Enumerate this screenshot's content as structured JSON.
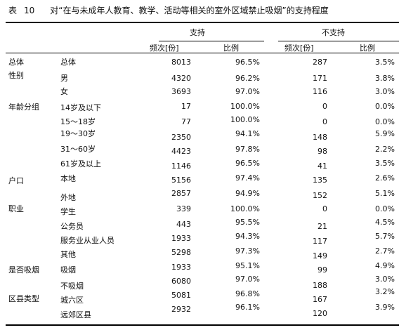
{
  "table": {
    "label": "表",
    "number": "10",
    "caption": "对“在与未成年人教育、教学、活动等相关的室外区域禁止吸烟”的支持程度",
    "groups": {
      "support": "支持",
      "nonsupport": "不支持"
    },
    "subheaders": {
      "freq": "频次[份]",
      "ratio": "比例"
    },
    "rows": [
      {
        "cat": "总体",
        "sub": "总体",
        "s_freq": "8013",
        "s_pct": "96.5%",
        "n_freq": "287",
        "n_pct": "3.5%"
      },
      {
        "cat": "性别",
        "sub": "男",
        "s_freq": "4320",
        "s_pct": "96.2%",
        "n_freq": "171",
        "n_pct": "3.8%"
      },
      {
        "cat": "",
        "sub": "女",
        "s_freq": "3693",
        "s_pct": "97.0%",
        "n_freq": "116",
        "n_pct": "3.0%"
      },
      {
        "cat": "年龄分组",
        "sub": "14岁及以下",
        "s_freq": "17",
        "s_pct": "100.0%",
        "n_freq": "0",
        "n_pct": "0.0%"
      },
      {
        "cat": "",
        "sub": "15～18岁",
        "s_freq": "77",
        "s_pct": "100.0%",
        "n_freq": "0",
        "n_pct": "0.0%"
      },
      {
        "cat": "",
        "sub": "19～30岁",
        "s_freq": "2350",
        "s_pct": "94.1%",
        "n_freq": "148",
        "n_pct": "5.9%"
      },
      {
        "cat": "",
        "sub": "31～60岁",
        "s_freq": "4423",
        "s_pct": "97.8%",
        "n_freq": "98",
        "n_pct": "2.2%"
      },
      {
        "cat": "",
        "sub": "61岁及以上",
        "s_freq": "1146",
        "s_pct": "96.5%",
        "n_freq": "41",
        "n_pct": "3.5%"
      },
      {
        "cat": "户口",
        "sub": "本地",
        "s_freq": "5156",
        "s_pct": "97.4%",
        "n_freq": "135",
        "n_pct": "2.6%"
      },
      {
        "cat": "",
        "sub": "外地",
        "s_freq": "2857",
        "s_pct": "94.9%",
        "n_freq": "152",
        "n_pct": "5.1%"
      },
      {
        "cat": "职业",
        "sub": "学生",
        "s_freq": "339",
        "s_pct": "100.0%",
        "n_freq": "0",
        "n_pct": "0.0%"
      },
      {
        "cat": "",
        "sub": "公务员",
        "s_freq": "443",
        "s_pct": "95.5%",
        "n_freq": "21",
        "n_pct": "4.5%"
      },
      {
        "cat": "",
        "sub": "服务业从业人员",
        "s_freq": "1933",
        "s_pct": "94.3%",
        "n_freq": "117",
        "n_pct": "5.7%"
      },
      {
        "cat": "",
        "sub": "其他",
        "s_freq": "5298",
        "s_pct": "97.3%",
        "n_freq": "149",
        "n_pct": "2.7%"
      },
      {
        "cat": "是否吸烟",
        "sub": "吸烟",
        "s_freq": "1933",
        "s_pct": "95.1%",
        "n_freq": "99",
        "n_pct": "4.9%"
      },
      {
        "cat": "",
        "sub": "不吸烟",
        "s_freq": "6080",
        "s_pct": "97.0%",
        "n_freq": "188",
        "n_pct": "3.0%"
      },
      {
        "cat": "区县类型",
        "sub": "城六区",
        "s_freq": "5081",
        "s_pct": "96.8%",
        "n_freq": "167",
        "n_pct": "3.2%"
      },
      {
        "cat": "",
        "sub": "远郊区县",
        "s_freq": "2932",
        "s_pct": "96.1%",
        "n_freq": "120",
        "n_pct": "3.9%"
      }
    ]
  }
}
